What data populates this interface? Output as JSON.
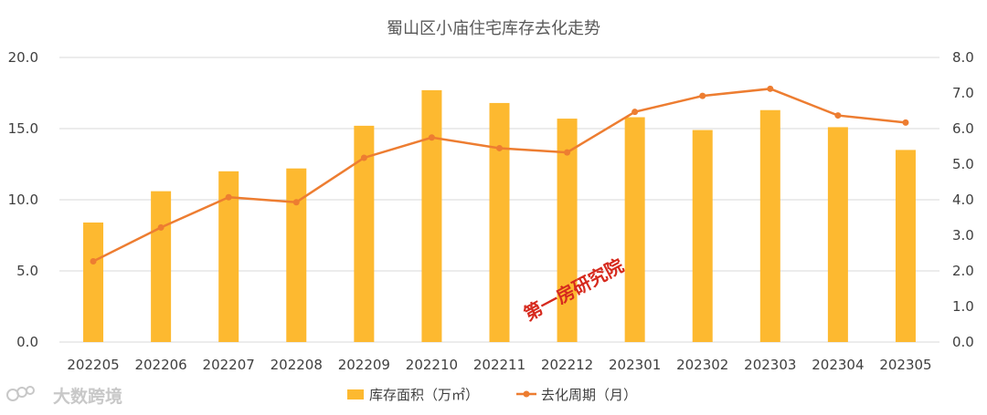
{
  "chart_data": {
    "type": "bar+line",
    "title": "蜀山区小庙住宅库存去化走势",
    "categories": [
      "202205",
      "202206",
      "202207",
      "202208",
      "202209",
      "202210",
      "202211",
      "202212",
      "202301",
      "202302",
      "202303",
      "202304",
      "202305"
    ],
    "series": [
      {
        "name": "库存面积（万㎡）",
        "type": "bar",
        "axis": "left",
        "values": [
          8.4,
          10.6,
          12.0,
          12.2,
          15.2,
          17.7,
          16.8,
          15.7,
          15.8,
          14.9,
          16.3,
          15.1,
          13.5
        ]
      },
      {
        "name": "去化周期（月）",
        "type": "line",
        "axis": "right",
        "values": [
          2.27,
          3.22,
          4.07,
          3.93,
          5.18,
          5.75,
          5.45,
          5.33,
          6.47,
          6.92,
          7.12,
          6.37,
          6.17
        ]
      }
    ],
    "y_left": {
      "min": 0,
      "max": 20,
      "step": 5,
      "ticks": [
        "0.0",
        "5.0",
        "10.0",
        "15.0",
        "20.0"
      ]
    },
    "y_right": {
      "min": 0,
      "max": 8,
      "step": 1,
      "ticks": [
        "0.0",
        "1.0",
        "2.0",
        "3.0",
        "4.0",
        "5.0",
        "6.0",
        "7.0",
        "8.0"
      ]
    },
    "grid": true,
    "legend_position": "bottom",
    "colors": {
      "bar": "#FDB930",
      "line": "#ED7D31",
      "grid": "#D9D9D9"
    },
    "watermarks": [
      "第一房研究院",
      "大数跨境"
    ]
  }
}
